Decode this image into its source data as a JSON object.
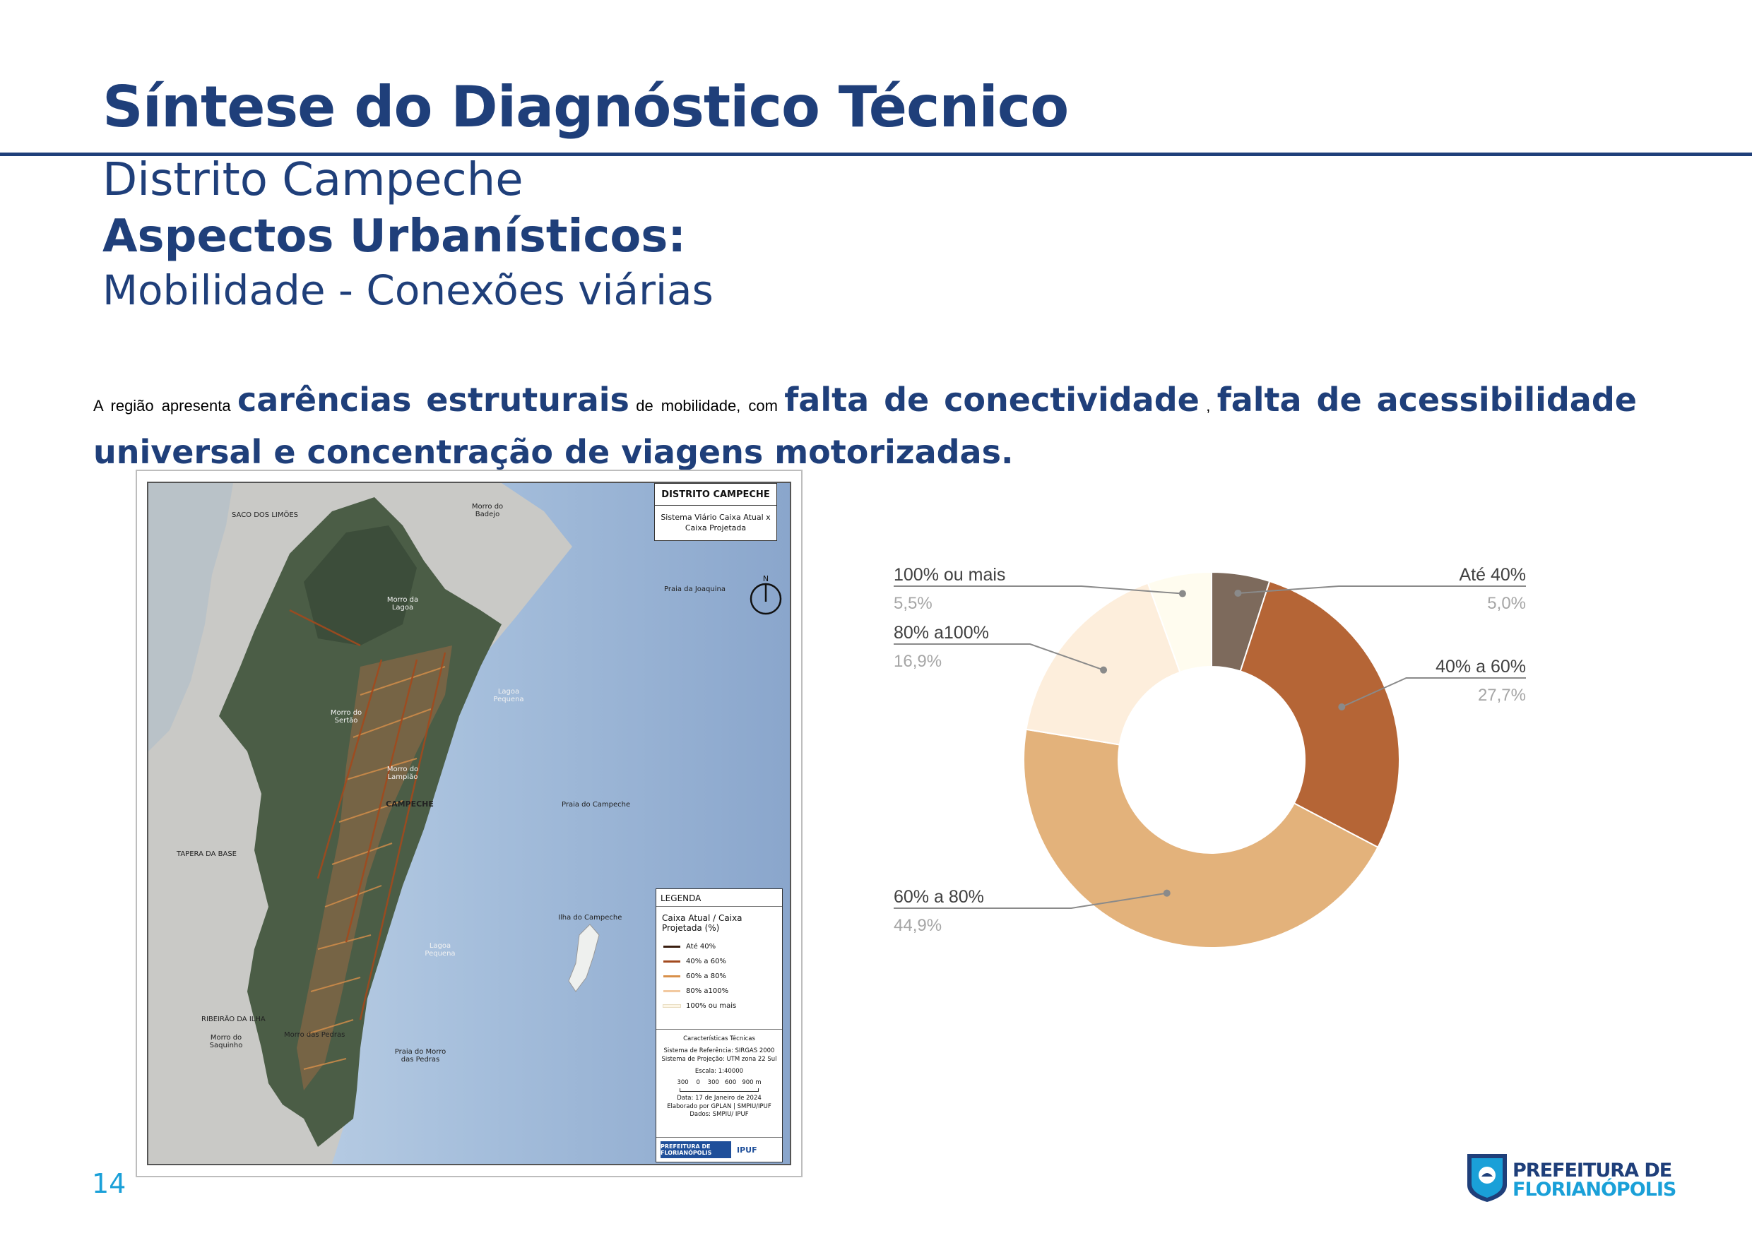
{
  "header": {
    "title": "Síntese do Diagnóstico Técnico",
    "district": "Distrito Campeche",
    "section": "Aspectos Urbanísticos:",
    "topic": "Mobilidade - Conexões viárias"
  },
  "lead": {
    "p1": "A região apresenta",
    "b1": "carências estruturais",
    "p2": "de mobilidade, com",
    "b2": "falta de conectividade",
    "p3": ",",
    "b3": "falta de acessibilidade universal e concentração de viagens motorizadas."
  },
  "map": {
    "title": "DISTRITO CAMPECHE",
    "subtitle": "Sistema Viário Caixa Atual x Caixa Projetada",
    "north": "N",
    "labels": {
      "saco": "SACO DOS LIMÕES",
      "badejo": "Morro do Badejo",
      "joaquina": "Praia da Joaquina",
      "lagoa": "Morro da Lagoa",
      "sertao": "Morro do Sertão",
      "lagoinha": "Lagoa Pequena",
      "lampiao": "Morro do Lampião",
      "campeche": "CAMPECHE",
      "tapera": "TAPERA DA BASE",
      "praia_campeche": "Praia do Campeche",
      "ilha": "Ilha do Campeche",
      "lagoa2": "Lagoa Pequena",
      "ribeirao": "RIBEIRÃO DA ILHA",
      "saquinho": "Morro do Saquinho",
      "pedras_morro": "Morro das Pedras",
      "praia_pedras": "Praia do Morro das Pedras"
    },
    "legend": {
      "heading": "LEGENDA",
      "subheading": "Caixa Atual / Caixa Projetada (%)",
      "items": [
        {
          "label": "Até 40%",
          "color": "#3a1e10"
        },
        {
          "label": "40% a 60%",
          "color": "#a24a1e"
        },
        {
          "label": "60% a 80%",
          "color": "#d8904a"
        },
        {
          "label": "80% a100%",
          "color": "#f2c9a0"
        },
        {
          "label": "100% ou mais",
          "color": "#fdf6e6"
        }
      ],
      "tech_title": "Características Técnicas",
      "tech_ref": "Sistema de Referência: SIRGAS 2000",
      "tech_proj": "Sistema de Projeção: UTM zona 22 Sul",
      "scale": "Escala: 1:40000",
      "scale_ticks": "300    0    300   600   900 m",
      "date": "Data: 17 de Janeiro de 2024",
      "author": "Elaborado por GPLAN | SMPIU/IPUF",
      "source": "Dados: SMPIU/ IPUF",
      "logo1": "PREFEITURA DE FLORIANÓPOLIS",
      "logo2": "IPUF"
    }
  },
  "chart_data": {
    "type": "pie",
    "donut": true,
    "title": "",
    "categories": [
      "Até 40%",
      "40% a 60%",
      "60% a 80%",
      "80% a100%",
      "100% ou mais"
    ],
    "values": [
      5.0,
      27.7,
      44.9,
      16.9,
      5.5
    ],
    "value_labels": [
      "5,0%",
      "27,7%",
      "44,9%",
      "16,9%",
      "5,5%"
    ],
    "colors": [
      "#7d6a5c",
      "#b56536",
      "#e3b27b",
      "#fdeedc",
      "#fffcef"
    ],
    "legend": "none"
  },
  "footer": {
    "page_number": "14",
    "logo_line1": "PREFEITURA DE",
    "logo_line2": "FLORIANÓPOLIS"
  }
}
